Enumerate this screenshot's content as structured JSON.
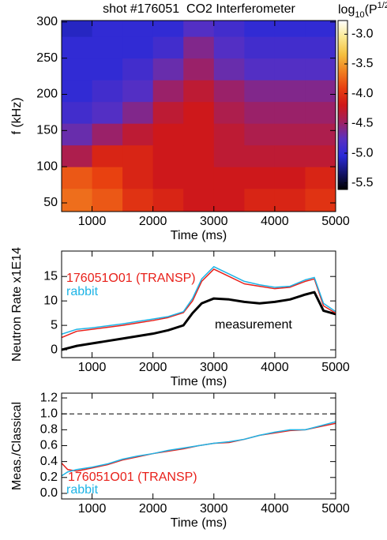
{
  "chart_data": [
    {
      "type": "heatmap",
      "title": "shot #176051  CO2 Interferometer",
      "ylabel": "f (kHz)",
      "xlabel": "Time (ms)",
      "xlim": [
        500,
        5000
      ],
      "ylim": [
        38,
        302
      ],
      "xticks": [
        1000,
        2000,
        3000,
        4000,
        5000
      ],
      "yticks": [
        50,
        100,
        150,
        200,
        250,
        300
      ],
      "x_bins": [
        500,
        1000,
        1500,
        2000,
        2500,
        3000,
        3500,
        4000,
        4500,
        5000
      ],
      "y_bins": [
        38,
        70,
        100,
        130,
        160,
        190,
        220,
        250,
        280,
        302
      ],
      "z": [
        [
          -3.7,
          -3.8,
          -4.0,
          -4.1,
          -4.2,
          -4.2,
          -4.1,
          -4.1,
          -4.0
        ],
        [
          -3.8,
          -3.9,
          -4.1,
          -4.2,
          -4.2,
          -4.2,
          -4.2,
          -4.2,
          -4.1
        ],
        [
          -4.4,
          -4.1,
          -4.1,
          -4.2,
          -4.2,
          -4.3,
          -4.3,
          -4.3,
          -4.3
        ],
        [
          -4.7,
          -4.5,
          -4.3,
          -4.2,
          -4.2,
          -4.3,
          -4.4,
          -4.4,
          -4.4
        ],
        [
          -4.9,
          -4.8,
          -4.6,
          -4.3,
          -4.2,
          -4.4,
          -4.5,
          -4.5,
          -4.5
        ],
        [
          -5.0,
          -4.9,
          -4.8,
          -4.5,
          -4.3,
          -4.5,
          -4.6,
          -4.6,
          -4.6
        ],
        [
          -5.0,
          -5.0,
          -4.9,
          -4.7,
          -4.5,
          -4.7,
          -4.8,
          -4.8,
          -4.8
        ],
        [
          -5.0,
          -5.0,
          -5.0,
          -4.9,
          -4.6,
          -4.8,
          -4.9,
          -4.9,
          -4.9
        ],
        [
          -5.1,
          -5.0,
          -5.0,
          -5.0,
          -4.8,
          -4.9,
          -5.0,
          -5.0,
          -5.0
        ]
      ],
      "zlim": [
        -5.61,
        -2.77
      ],
      "zticks": [
        {
          "value": -3.0,
          "label": "-3.0"
        },
        -3.5,
        {
          "value": -4.0,
          "label": "-4.0"
        },
        -4.5,
        {
          "value": -5.0,
          "label": "-5.0"
        },
        -5.5
      ],
      "colormap": [
        "#000000",
        "#14146e",
        "#2a2ad8",
        "#5a30c0",
        "#a02060",
        "#d01818",
        "#e84010",
        "#f08020",
        "#f4c040",
        "#fae890",
        "#ffffff"
      ],
      "colorbar_label": {
        "base": "log",
        "sub": "10",
        "open": "(P",
        "sup": "1/2",
        "close": ")"
      }
    },
    {
      "type": "line",
      "ylabel": "Neutron Rate x1E14",
      "xlabel": "Time (ms)",
      "xlim": [
        500,
        5000
      ],
      "ylim": [
        -1.6,
        20.2
      ],
      "xticks": [
        1000,
        2000,
        3000,
        4000,
        5000
      ],
      "yticks": [
        0,
        5,
        10,
        15
      ],
      "x": [
        500,
        750,
        1000,
        1250,
        1500,
        1750,
        2000,
        2250,
        2500,
        2650,
        2800,
        3000,
        3250,
        3500,
        3750,
        4000,
        4250,
        4500,
        4650,
        4800,
        5000
      ],
      "series": [
        {
          "name": "measurement",
          "color": "#000000",
          "width": 3,
          "values": [
            0,
            0.8,
            1.3,
            1.8,
            2.3,
            2.8,
            3.3,
            4,
            5,
            7.5,
            9.5,
            10.5,
            10.3,
            9.8,
            9.5,
            9.8,
            10.3,
            11.3,
            11.8,
            8,
            7.3
          ]
        },
        {
          "name": "176051O01 (TRANSP)",
          "color": "#e8201a",
          "width": 1.5,
          "values": [
            2.5,
            3.8,
            4.2,
            4.6,
            5.0,
            5.5,
            6.0,
            6.6,
            7.6,
            10,
            14,
            16.5,
            15,
            13.5,
            13,
            12.5,
            12.8,
            14,
            14.5,
            9,
            7.5
          ]
        },
        {
          "name": "rabbit",
          "color": "#1eb4e6",
          "width": 1.5,
          "values": [
            3.2,
            4.2,
            4.5,
            4.9,
            5.3,
            5.8,
            6.3,
            6.8,
            7.8,
            10.5,
            14.5,
            17,
            15.5,
            14,
            13.3,
            12.8,
            13,
            14.3,
            14.8,
            9.5,
            7.8
          ]
        }
      ]
    },
    {
      "type": "line",
      "ylabel": "Meas./Classical",
      "xlabel": "Time (ms)",
      "xlim": [
        500,
        5000
      ],
      "ylim": [
        -0.07,
        1.26
      ],
      "xticks": [
        1000,
        2000,
        3000,
        4000,
        5000
      ],
      "yticks": [
        {
          "value": 0,
          "label": "0.0"
        },
        0.2,
        0.4,
        0.6,
        0.8,
        {
          "value": 1,
          "label": "1.0"
        },
        1.2
      ],
      "reference_line": 1,
      "x": [
        500,
        600,
        750,
        1000,
        1250,
        1500,
        1750,
        2000,
        2250,
        2500,
        2750,
        3000,
        3250,
        3500,
        3750,
        4000,
        4250,
        4500,
        4750,
        5000
      ],
      "series": [
        {
          "name": "176051O01 (TRANSP)",
          "color": "#e8201a",
          "width": 1.5,
          "values": [
            0.38,
            0.3,
            0.28,
            0.32,
            0.36,
            0.42,
            0.46,
            0.5,
            0.53,
            0.56,
            0.6,
            0.63,
            0.64,
            0.68,
            0.73,
            0.76,
            0.79,
            0.8,
            0.84,
            0.88
          ]
        },
        {
          "name": "rabbit",
          "color": "#1eb4e6",
          "width": 1.5,
          "values": [
            0.22,
            0.27,
            0.3,
            0.33,
            0.37,
            0.43,
            0.47,
            0.5,
            0.54,
            0.57,
            0.6,
            0.63,
            0.65,
            0.68,
            0.73,
            0.77,
            0.8,
            0.8,
            0.85,
            0.9
          ]
        }
      ]
    }
  ]
}
